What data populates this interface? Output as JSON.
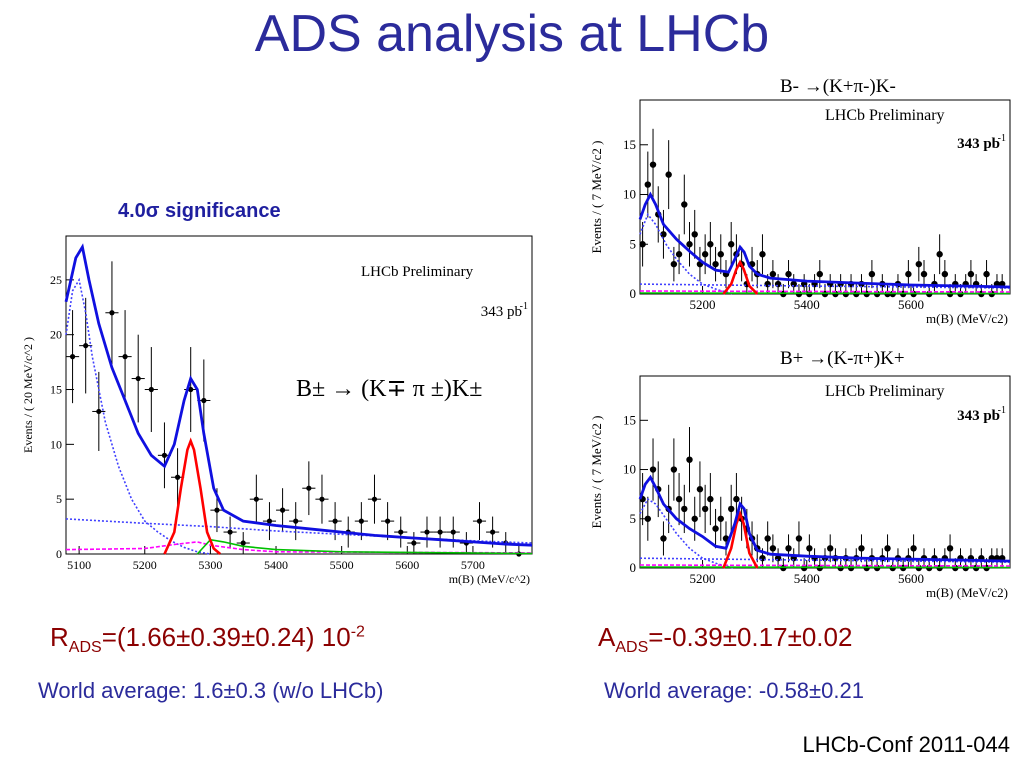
{
  "slide": {
    "title": "ADS analysis at LHCb",
    "significance": "4.0σ significance",
    "conf": "LHCb-Conf 2011-044"
  },
  "results": {
    "r_ads_main": "R",
    "r_ads_sub": "ADS",
    "r_ads_value": "=(1.66±0.39±0.24) 10",
    "r_ads_exp": "-2",
    "r_world": "World average: 1.6±0.3 (w/o LHCb)",
    "a_ads_main": "A",
    "a_ads_sub": "ADS",
    "a_ads_value": "=-0.39±0.17±0.02",
    "a_world": "World average: -0.58±0.21"
  },
  "colors": {
    "title": "#2b2b9b",
    "result": "#8b0000",
    "fit_total": "#1010e0",
    "signal": "#ff0000",
    "partreco": "#4040ff",
    "combinatorial": "#4040ff",
    "dk_misid": "#ff00ff",
    "dpi_misid": "#00c000"
  },
  "chart_data": [
    {
      "type": "scatter",
      "name": "combined",
      "label": "LHCb Preliminary",
      "lumi": "343 pb",
      "lumi_exp": "-1",
      "decay": "B± → (K∓ π ±)K±",
      "xlabel": "m(B) (MeV/c^2)",
      "ylabel": "Events / ( 20 MeV/c^2 )",
      "xlim": [
        5080,
        5790
      ],
      "ylim": [
        0,
        29
      ],
      "xticks": [
        5100,
        5200,
        5300,
        5400,
        5500,
        5600,
        5700
      ],
      "yticks": [
        0,
        5,
        10,
        15,
        20,
        25
      ],
      "x": [
        5090,
        5110,
        5130,
        5150,
        5170,
        5190,
        5210,
        5230,
        5250,
        5270,
        5290,
        5310,
        5330,
        5350,
        5370,
        5390,
        5410,
        5430,
        5450,
        5470,
        5490,
        5510,
        5530,
        5550,
        5570,
        5590,
        5610,
        5630,
        5650,
        5670,
        5690,
        5710,
        5730,
        5750,
        5770
      ],
      "y": [
        18,
        19,
        13,
        22,
        18,
        16,
        15,
        9,
        7,
        15,
        14,
        4,
        2,
        1,
        5,
        3,
        4,
        3,
        6,
        5,
        3,
        2,
        3,
        5,
        3,
        2,
        1,
        2,
        2,
        2,
        1,
        3,
        2,
        1,
        0
      ],
      "fit_total": {
        "x": [
          5080,
          5095,
          5105,
          5115,
          5130,
          5150,
          5170,
          5190,
          5210,
          5230,
          5245,
          5260,
          5270,
          5280,
          5290,
          5305,
          5320,
          5350,
          5400,
          5450,
          5500,
          5550,
          5600,
          5650,
          5700,
          5750,
          5790
        ],
        "y": [
          23,
          27,
          28,
          25,
          21,
          17,
          14,
          11,
          9,
          8,
          10,
          14,
          16,
          15,
          11,
          6,
          4,
          3,
          2.6,
          2.3,
          2.0,
          1.7,
          1.5,
          1.3,
          1.1,
          0.9,
          0.8
        ]
      },
      "signal": {
        "x": [
          5230,
          5245,
          5255,
          5265,
          5270,
          5275,
          5285,
          5295,
          5305,
          5315
        ],
        "y": [
          0,
          2,
          6,
          9.5,
          10.3,
          9.5,
          6,
          2,
          0.5,
          0
        ]
      },
      "partreco": {
        "x": [
          5080,
          5090,
          5100,
          5110,
          5120,
          5140,
          5160,
          5180,
          5200,
          5220,
          5240,
          5260,
          5280,
          5300
        ],
        "y": [
          20,
          24,
          25,
          22,
          18,
          12,
          8,
          5,
          3,
          2,
          1.2,
          0.6,
          0.2,
          0
        ]
      },
      "combinatorial": {
        "x": [
          5080,
          5200,
          5300,
          5400,
          5500,
          5600,
          5700,
          5790
        ],
        "y": [
          3.2,
          2.8,
          2.5,
          2.1,
          1.8,
          1.5,
          1.2,
          1.0
        ]
      },
      "dk_misid": {
        "x": [
          5080,
          5200,
          5250,
          5280,
          5300,
          5350,
          5400,
          5790
        ],
        "y": [
          0.4,
          0.5,
          0.9,
          1.1,
          0.8,
          0.4,
          0.2,
          0.1
        ]
      },
      "dpi_misid": {
        "x": [
          5280,
          5300,
          5320,
          5350,
          5400,
          5500,
          5790
        ],
        "y": [
          0,
          1.3,
          1.1,
          0.7,
          0.4,
          0.2,
          0.05
        ]
      }
    },
    {
      "type": "scatter",
      "name": "minus",
      "label": "LHCb Preliminary",
      "lumi": "343 pb",
      "lumi_exp": "-1",
      "decay": "B- →(K+π-)K-",
      "xlabel": "m(B) (MeV/c2)",
      "ylabel": "Events / ( 7 MeV/c2 )",
      "xlim": [
        5080,
        5790
      ],
      "ylim": [
        0,
        19.5
      ],
      "xticks": [
        5200,
        5400,
        5600
      ],
      "yticks": [
        0,
        5,
        10,
        15
      ],
      "x": [
        5085,
        5095,
        5105,
        5115,
        5125,
        5135,
        5145,
        5155,
        5165,
        5175,
        5185,
        5195,
        5205,
        5215,
        5225,
        5235,
        5245,
        5255,
        5265,
        5275,
        5285,
        5295,
        5305,
        5315,
        5325,
        5335,
        5345,
        5355,
        5365,
        5375,
        5385,
        5395,
        5405,
        5415,
        5425,
        5435,
        5445,
        5455,
        5465,
        5475,
        5485,
        5495,
        5505,
        5515,
        5525,
        5535,
        5545,
        5555,
        5565,
        5575,
        5585,
        5595,
        5605,
        5615,
        5625,
        5635,
        5645,
        5655,
        5665,
        5675,
        5685,
        5695,
        5705,
        5715,
        5725,
        5735,
        5745,
        5755,
        5765,
        5775
      ],
      "y": [
        5,
        11,
        13,
        8,
        6,
        12,
        3,
        4,
        9,
        5,
        6,
        3,
        4,
        5,
        3,
        4,
        2,
        5,
        4,
        3,
        1,
        3,
        2,
        4,
        1,
        2,
        1,
        0,
        2,
        1,
        0,
        1,
        0,
        1,
        2,
        0,
        1,
        0,
        1,
        0,
        1,
        0,
        1,
        0,
        2,
        0,
        1,
        0,
        0,
        1,
        0,
        2,
        0,
        3,
        2,
        0,
        1,
        4,
        2,
        0,
        1,
        0,
        1,
        2,
        1,
        0,
        2,
        0,
        1,
        1
      ],
      "fit_total": {
        "x": [
          5080,
          5090,
          5100,
          5110,
          5125,
          5150,
          5175,
          5200,
          5225,
          5250,
          5262,
          5272,
          5280,
          5290,
          5305,
          5330,
          5400,
          5500,
          5600,
          5700,
          5790
        ],
        "y": [
          7.5,
          9,
          10,
          9,
          7,
          5.5,
          4.3,
          3.2,
          2.4,
          2.2,
          3.5,
          4.7,
          4.2,
          2.8,
          2.0,
          1.6,
          1.3,
          1.1,
          0.9,
          0.8,
          0.7
        ]
      },
      "signal": {
        "x": [
          5240,
          5255,
          5265,
          5272,
          5279,
          5290,
          5305
        ],
        "y": [
          0,
          1,
          2.5,
          3.2,
          2.5,
          0.8,
          0
        ]
      },
      "partreco": {
        "x": [
          5080,
          5095,
          5110,
          5130,
          5150,
          5175,
          5200,
          5230,
          5260
        ],
        "y": [
          6,
          8,
          7,
          5,
          3.5,
          2,
          1,
          0.4,
          0
        ]
      },
      "combinatorial": {
        "x": [
          5080,
          5400,
          5790
        ],
        "y": [
          1.0,
          0.8,
          0.6
        ]
      },
      "dk_misid": {
        "x": [
          5080,
          5790
        ],
        "y": [
          0.3,
          0.2
        ]
      },
      "dpi_misid": {
        "x": [
          5080,
          5790
        ],
        "y": [
          0.1,
          0.05
        ]
      }
    },
    {
      "type": "scatter",
      "name": "plus",
      "label": "LHCb Preliminary",
      "lumi": "343 pb",
      "lumi_exp": "-1",
      "decay": "B+ →(K-π+)K+",
      "xlabel": "m(B) (MeV/c2)",
      "ylabel": "Events / ( 7 MeV/c2 )",
      "xlim": [
        5080,
        5790
      ],
      "ylim": [
        0,
        19.5
      ],
      "xticks": [
        5200,
        5400,
        5600
      ],
      "yticks": [
        0,
        5,
        10,
        15
      ],
      "x": [
        5085,
        5095,
        5105,
        5115,
        5125,
        5135,
        5145,
        5155,
        5165,
        5175,
        5185,
        5195,
        5205,
        5215,
        5225,
        5235,
        5245,
        5255,
        5265,
        5275,
        5285,
        5295,
        5305,
        5315,
        5325,
        5335,
        5345,
        5355,
        5365,
        5375,
        5385,
        5395,
        5405,
        5415,
        5425,
        5435,
        5445,
        5455,
        5465,
        5475,
        5485,
        5495,
        5505,
        5515,
        5525,
        5535,
        5545,
        5555,
        5565,
        5575,
        5585,
        5595,
        5605,
        5615,
        5625,
        5635,
        5645,
        5655,
        5665,
        5675,
        5685,
        5695,
        5705,
        5715,
        5725,
        5735,
        5745,
        5755,
        5765,
        5775
      ],
      "y": [
        7,
        5,
        10,
        8,
        3,
        6,
        10,
        7,
        6,
        11,
        5,
        8,
        6,
        7,
        4,
        5,
        3,
        6,
        7,
        5,
        4,
        3,
        2,
        1,
        3,
        2,
        1,
        0,
        2,
        1,
        3,
        0,
        2,
        1,
        0,
        1,
        2,
        1,
        0,
        1,
        0,
        1,
        2,
        0,
        1,
        0,
        1,
        2,
        0,
        1,
        0,
        1,
        2,
        0,
        1,
        0,
        1,
        0,
        1,
        2,
        0,
        1,
        0,
        1,
        0,
        1,
        0,
        1,
        1,
        1
      ],
      "fit_total": {
        "x": [
          5080,
          5090,
          5100,
          5110,
          5125,
          5150,
          5175,
          5200,
          5225,
          5245,
          5262,
          5272,
          5280,
          5290,
          5305,
          5330,
          5400,
          5500,
          5600,
          5700,
          5790
        ],
        "y": [
          7,
          8.5,
          9.2,
          8.2,
          6.5,
          5,
          4,
          3.2,
          2.2,
          2.0,
          4.5,
          6.5,
          6,
          3.5,
          1.8,
          1.4,
          1.2,
          1.0,
          0.9,
          0.8,
          0.7
        ]
      },
      "signal": {
        "x": [
          5240,
          5255,
          5265,
          5272,
          5279,
          5290,
          5305
        ],
        "y": [
          0,
          2,
          4.5,
          5.5,
          4.5,
          1.5,
          0
        ]
      },
      "partreco": {
        "x": [
          5080,
          5095,
          5110,
          5130,
          5150,
          5175,
          5200,
          5230,
          5260
        ],
        "y": [
          5.5,
          7,
          6.5,
          5,
          3.5,
          2,
          1,
          0.4,
          0
        ]
      },
      "combinatorial": {
        "x": [
          5080,
          5400,
          5790
        ],
        "y": [
          1.0,
          0.8,
          0.6
        ]
      },
      "dk_misid": {
        "x": [
          5080,
          5790
        ],
        "y": [
          0.3,
          0.2
        ]
      },
      "dpi_misid": {
        "x": [
          5080,
          5790
        ],
        "y": [
          0.1,
          0.05
        ]
      }
    }
  ]
}
